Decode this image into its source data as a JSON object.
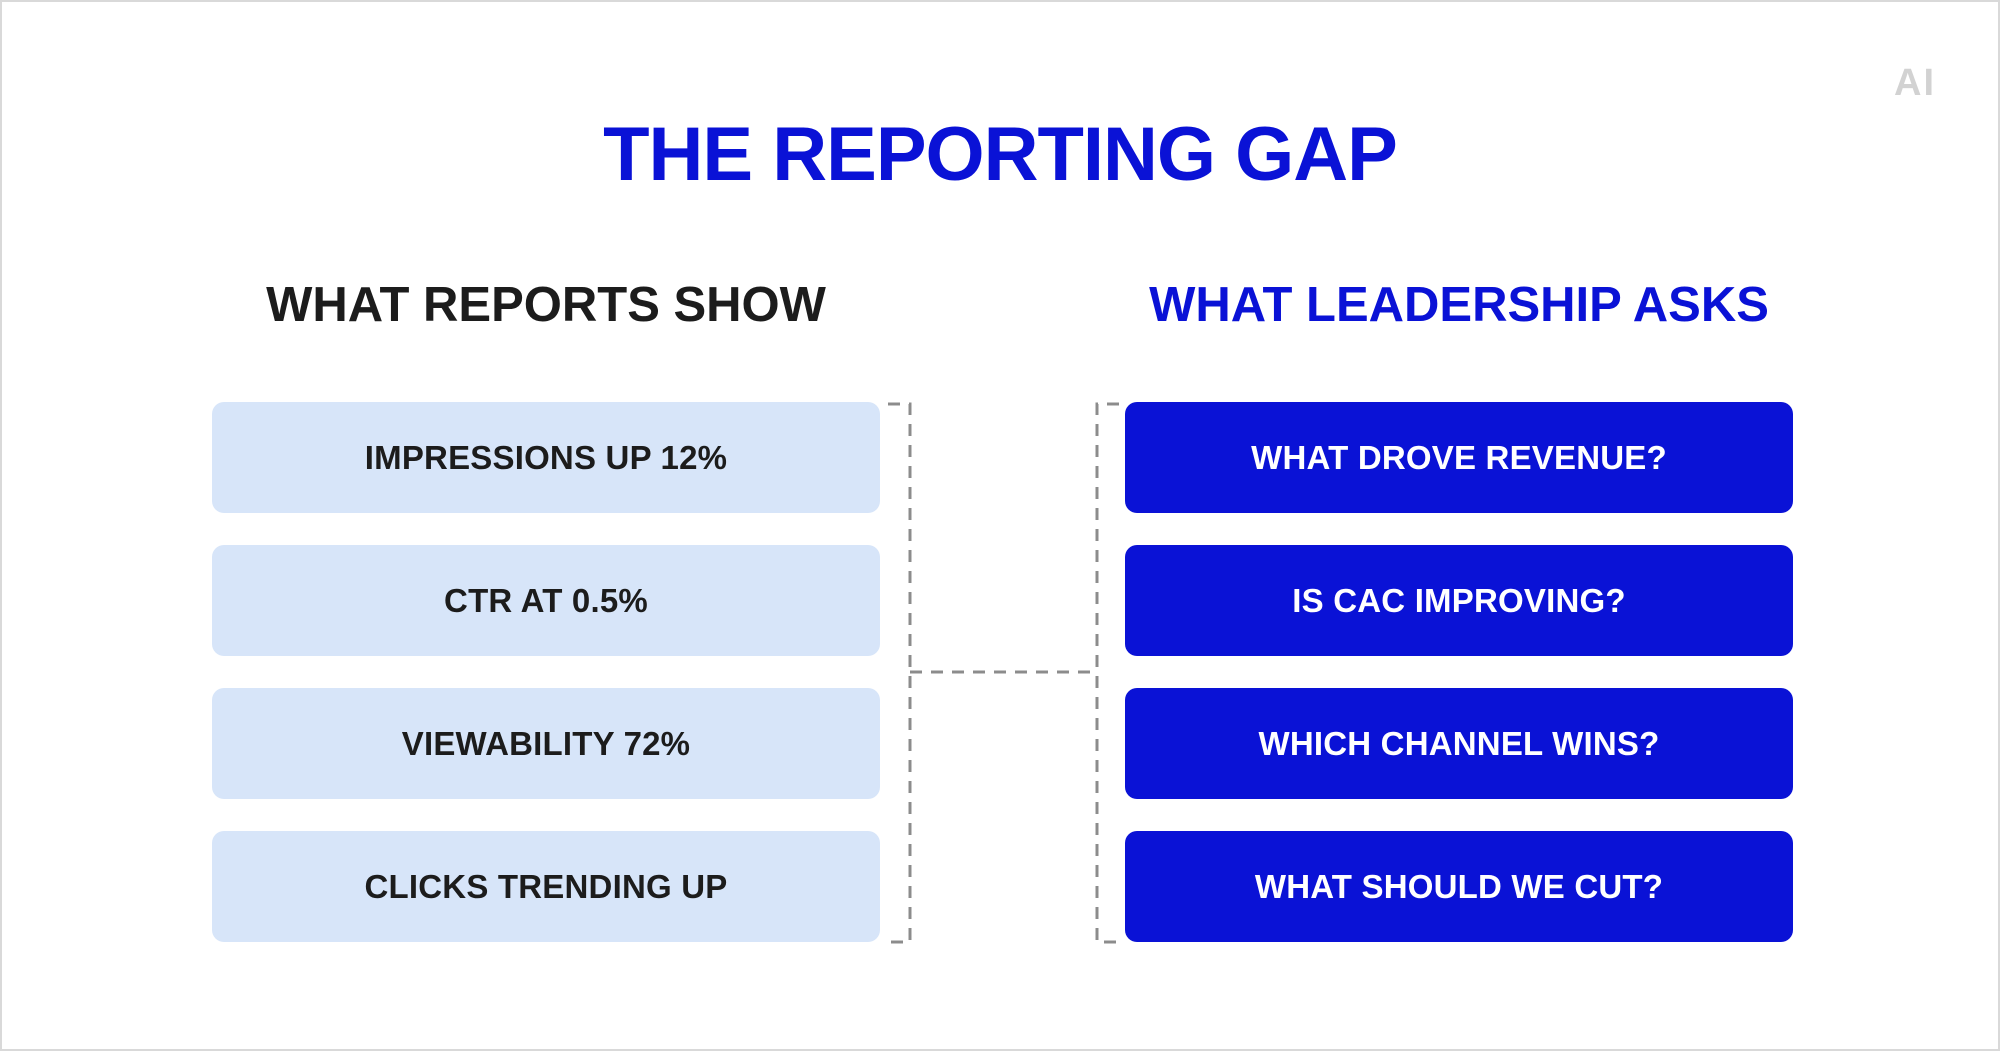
{
  "logo": "AI",
  "title": "THE REPORTING GAP",
  "left_column": {
    "heading": "WHAT REPORTS SHOW",
    "items": [
      "IMPRESSIONS UP 12%",
      "CTR AT 0.5%",
      "VIEWABILITY 72%",
      "CLICKS TRENDING UP"
    ]
  },
  "right_column": {
    "heading": "WHAT LEADERSHIP ASKS",
    "items": [
      "WHAT DROVE REVENUE?",
      "IS CAC IMPROVING?",
      "WHICH CHANNEL WINS?",
      "WHAT SHOULD WE CUT?"
    ]
  },
  "colors": {
    "accent": "#0a12d6",
    "metric_fill": "#d7e5f9",
    "text_dark": "#1c1c1c",
    "connector": "#8c8c8c"
  }
}
